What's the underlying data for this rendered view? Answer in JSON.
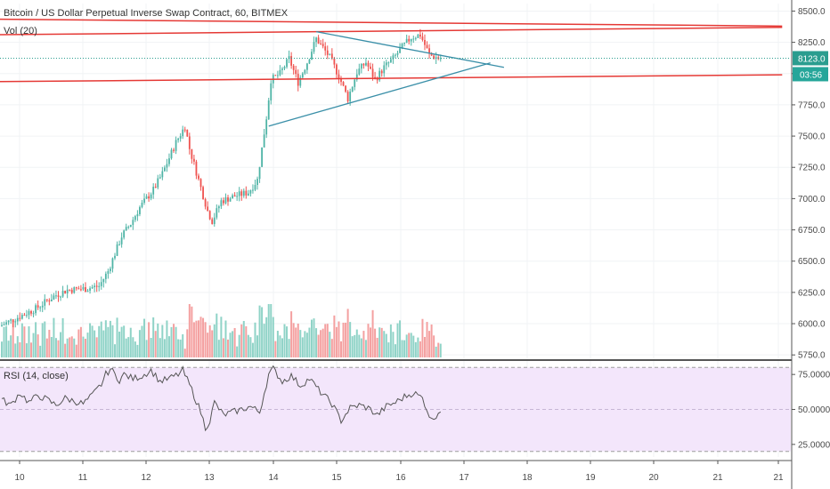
{
  "title": "Bitcoin / US Dollar Perpetual Inverse Swap Contract, 60, BITMEX",
  "volume_legend": "Vol (20)",
  "rsi_legend": "RSI (14, close)",
  "price_badge": "8123.0",
  "timer_badge": "03:56",
  "colors": {
    "up": "#4fb4a6",
    "down": "#ef5350",
    "vol_up": "#8fd3c7",
    "vol_down": "#f4a0a0",
    "trend_red": "#e53935",
    "triangle": "#3a8fa8",
    "rsi_line": "#555555",
    "rsi_band": "#f3e6fb",
    "price_line": "#2a9d8f",
    "timer_bg": "#26a69a"
  },
  "chart_data": {
    "type": "candlestick",
    "interval": "60",
    "exchange": "BITMEX",
    "price_axis": {
      "ticks": [
        "8500.0",
        "8250.0",
        "8000.0",
        "7750.0",
        "7500.0",
        "7250.0",
        "7000.0",
        "6750.0",
        "6500.0",
        "6250.0",
        "6000.0",
        "5750.0"
      ],
      "ylim": [
        5730,
        8560
      ]
    },
    "rsi_axis": {
      "ticks": [
        "75.0000",
        "50.0000",
        "25.0000"
      ],
      "ylim": [
        16,
        84
      ],
      "bands": [
        80,
        20
      ]
    },
    "date_axis": {
      "ticks": [
        "10",
        "11",
        "12",
        "13",
        "14",
        "15",
        "16",
        "17",
        "18",
        "19",
        "20",
        "21",
        "21"
      ]
    },
    "price_anchors": [
      [
        0,
        5980
      ],
      [
        8,
        6050
      ],
      [
        16,
        6120
      ],
      [
        24,
        6220
      ],
      [
        30,
        6270
      ],
      [
        38,
        6280
      ],
      [
        44,
        6300
      ],
      [
        48,
        6420
      ],
      [
        54,
        6700
      ],
      [
        58,
        6800
      ],
      [
        62,
        6930
      ],
      [
        68,
        7070
      ],
      [
        72,
        7200
      ],
      [
        78,
        7450
      ],
      [
        82,
        7580
      ],
      [
        84,
        7400
      ],
      [
        88,
        7150
      ],
      [
        92,
        6900
      ],
      [
        94,
        6820
      ],
      [
        98,
        6980
      ],
      [
        104,
        7020
      ],
      [
        110,
        7050
      ],
      [
        114,
        7150
      ],
      [
        118,
        7650
      ],
      [
        120,
        7950
      ],
      [
        124,
        8000
      ],
      [
        128,
        8120
      ],
      [
        132,
        7930
      ],
      [
        136,
        8090
      ],
      [
        140,
        8280
      ],
      [
        146,
        8130
      ],
      [
        150,
        7980
      ],
      [
        154,
        7800
      ],
      [
        158,
        8010
      ],
      [
        162,
        8090
      ],
      [
        166,
        7950
      ],
      [
        170,
        8050
      ],
      [
        174,
        8120
      ],
      [
        178,
        8210
      ],
      [
        182,
        8290
      ],
      [
        186,
        8310
      ],
      [
        190,
        8150
      ],
      [
        194,
        8123
      ]
    ],
    "rsi_anchors": [
      [
        0,
        57
      ],
      [
        4,
        53
      ],
      [
        8,
        62
      ],
      [
        12,
        55
      ],
      [
        16,
        60
      ],
      [
        20,
        57
      ],
      [
        24,
        53
      ],
      [
        28,
        58
      ],
      [
        32,
        56
      ],
      [
        36,
        54
      ],
      [
        40,
        60
      ],
      [
        44,
        68
      ],
      [
        46,
        75
      ],
      [
        48,
        79
      ],
      [
        52,
        71
      ],
      [
        54,
        75
      ],
      [
        58,
        72
      ],
      [
        62,
        74
      ],
      [
        66,
        78
      ],
      [
        70,
        70
      ],
      [
        74,
        72
      ],
      [
        78,
        75
      ],
      [
        80,
        78
      ],
      [
        84,
        64
      ],
      [
        88,
        48
      ],
      [
        90,
        37
      ],
      [
        92,
        42
      ],
      [
        94,
        55
      ],
      [
        98,
        46
      ],
      [
        104,
        49
      ],
      [
        110,
        52
      ],
      [
        114,
        48
      ],
      [
        118,
        75
      ],
      [
        120,
        79
      ],
      [
        124,
        70
      ],
      [
        128,
        74
      ],
      [
        132,
        67
      ],
      [
        136,
        72
      ],
      [
        140,
        64
      ],
      [
        146,
        54
      ],
      [
        150,
        42
      ],
      [
        154,
        51
      ],
      [
        158,
        53
      ],
      [
        162,
        51
      ],
      [
        166,
        46
      ],
      [
        170,
        52
      ],
      [
        174,
        55
      ],
      [
        178,
        59
      ],
      [
        182,
        62
      ],
      [
        186,
        58
      ],
      [
        190,
        42
      ],
      [
        194,
        50
      ]
    ],
    "overlay_lines": [
      {
        "name": "upper resistance",
        "color": "red",
        "p1": [
          -5,
          8310
        ],
        "p2": [
          345,
          8370
        ]
      },
      {
        "name": "upper channel",
        "color": "red",
        "p1": [
          -5,
          8435
        ],
        "p2": [
          345,
          8380
        ]
      },
      {
        "name": "support",
        "color": "red",
        "p1": [
          -5,
          7935
        ],
        "p2": [
          345,
          7990
        ]
      },
      {
        "name": "triangle upper",
        "color": "blue",
        "p1": [
          139,
          8335
        ],
        "p2": [
          222,
          8050
        ]
      },
      {
        "name": "triangle lower",
        "color": "blue",
        "p1": [
          118,
          7580
        ],
        "p2": [
          216,
          8085
        ]
      }
    ]
  }
}
